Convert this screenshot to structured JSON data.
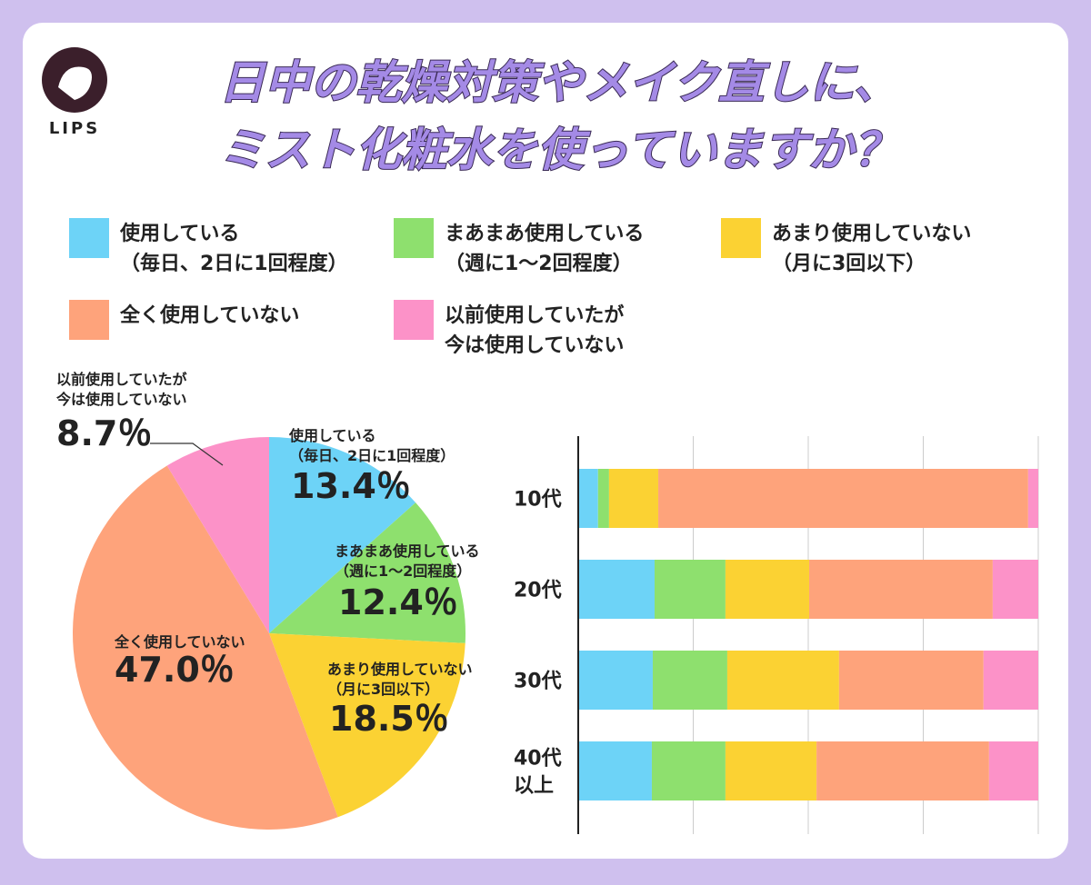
{
  "header": {
    "logo": "LIPS",
    "title": [
      "日中の乾燥対策やメイク直しに、",
      "ミスト化粧水を使っていますか？"
    ]
  },
  "chart_data": [
    {
      "type": "pie",
      "categories": [
        [
          "使用している",
          "（毎日、2日に1回程度）"
        ],
        [
          "まあまあ使用している",
          "（週に1〜2回程度）"
        ],
        [
          "あまり使用していない",
          "（月に3回以下）"
        ],
        [
          "全く使用していない"
        ],
        [
          "以前使用していたが",
          "今は使用していない"
        ]
      ],
      "colors": [
        "#6dd3f7",
        "#8ee06e",
        "#fbd233",
        "#fea37b",
        "#fc92c8"
      ],
      "values": [
        13.4,
        12.4,
        18.5,
        47.0,
        8.7
      ],
      "value_labels": [
        "13.4％",
        "12.4％",
        "18.5％",
        "47.0％",
        "8.7％"
      ]
    },
    {
      "type": "stacked-bar",
      "orientation": "horizontal",
      "categories": [
        [
          "10代"
        ],
        [
          "20代"
        ],
        [
          "30代"
        ],
        [
          "40代",
          "以上"
        ]
      ],
      "xlim": [
        0,
        100
      ],
      "xticks": [
        0,
        25,
        50,
        75,
        100
      ],
      "grid": true,
      "series": [
        {
          "color": "#6dd3f7",
          "values": [
            4.3,
            16.6,
            16.2,
            16.0
          ]
        },
        {
          "color": "#8ee06e",
          "values": [
            2.4,
            15.4,
            16.2,
            16.0
          ]
        },
        {
          "color": "#fbd233",
          "values": [
            10.7,
            18.2,
            24.3,
            19.8
          ]
        },
        {
          "color": "#fea37b",
          "values": [
            80.4,
            39.9,
            31.4,
            37.5
          ]
        },
        {
          "color": "#fc92c8",
          "values": [
            2.2,
            9.9,
            11.9,
            10.7
          ]
        }
      ]
    }
  ]
}
